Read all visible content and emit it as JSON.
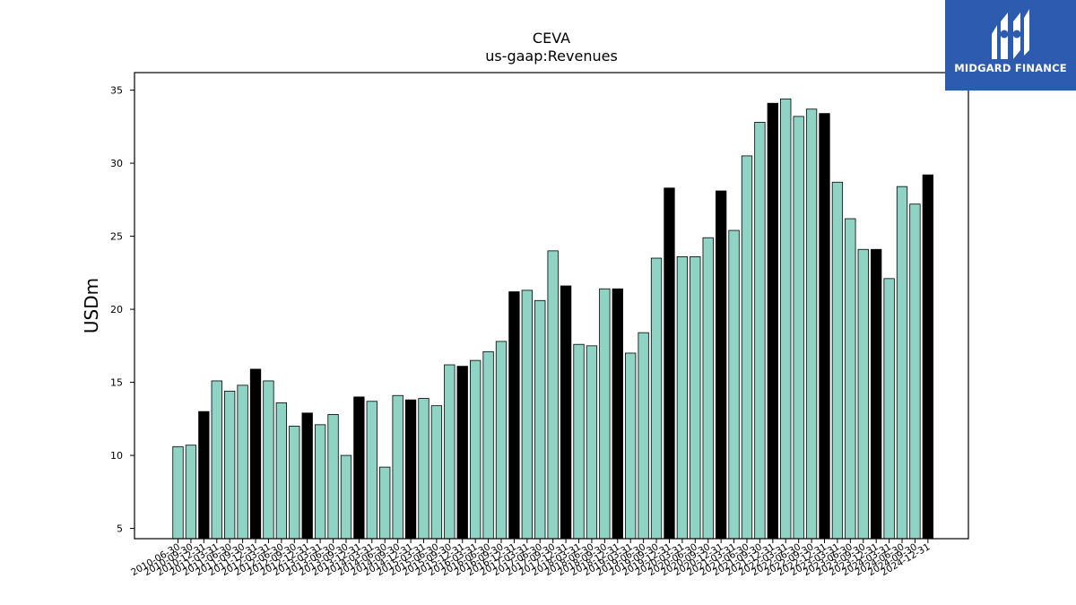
{
  "chart_data": {
    "type": "bar",
    "title": "CEVA",
    "subtitle": "us-gaap:Revenues",
    "xlabel": "",
    "ylabel": "USDm",
    "ylim": [
      4.3,
      36.2
    ],
    "yticks": [
      5,
      10,
      15,
      20,
      25,
      30,
      35
    ],
    "grid": false,
    "bar_color": "#8fd3c4",
    "highlight_color": "#000000",
    "categories": [
      "2010-06-30",
      "2010-09-30",
      "2010-12-31",
      "2011-03-31",
      "2011-06-30",
      "2011-09-30",
      "2011-12-31",
      "2012-03-31",
      "2012-06-30",
      "2012-09-30",
      "2012-12-31",
      "2013-03-31",
      "2013-06-30",
      "2013-09-30",
      "2013-12-31",
      "2014-03-31",
      "2014-06-30",
      "2014-09-30",
      "2014-12-31",
      "2015-03-31",
      "2015-06-30",
      "2015-09-30",
      "2015-12-31",
      "2016-03-31",
      "2016-06-30",
      "2016-09-30",
      "2016-12-31",
      "2017-03-31",
      "2017-06-30",
      "2017-09-30",
      "2017-12-31",
      "2018-03-31",
      "2018-06-30",
      "2018-09-30",
      "2018-12-31",
      "2019-03-31",
      "2019-06-30",
      "2019-09-30",
      "2019-12-31",
      "2020-03-31",
      "2020-06-30",
      "2020-09-30",
      "2020-12-31",
      "2021-03-31",
      "2021-06-30",
      "2021-09-30",
      "2021-12-31",
      "2022-03-31",
      "2022-06-30",
      "2022-09-30",
      "2022-12-31",
      "2023-03-31",
      "2023-06-30",
      "2023-09-30",
      "2023-12-31",
      "2024-03-31",
      "2024-06-30",
      "2024-09-30",
      "2024-12-31"
    ],
    "values": [
      10.6,
      10.7,
      13.0,
      15.1,
      14.4,
      14.8,
      15.9,
      15.1,
      13.6,
      12.0,
      12.9,
      12.1,
      12.8,
      10.0,
      14.0,
      13.7,
      9.2,
      14.1,
      13.8,
      13.9,
      13.4,
      16.2,
      16.1,
      16.5,
      17.1,
      17.8,
      21.2,
      21.3,
      20.6,
      24.0,
      21.6,
      17.6,
      17.5,
      21.4,
      21.4,
      17.0,
      18.4,
      23.5,
      28.3,
      23.6,
      23.6,
      24.9,
      28.1,
      25.4,
      30.5,
      32.8,
      34.1,
      34.4,
      33.2,
      33.7,
      33.4,
      28.7,
      26.2,
      24.1,
      24.1,
      22.1,
      28.4,
      27.2,
      29.2
    ],
    "highlighted": [
      false,
      false,
      true,
      false,
      false,
      false,
      true,
      false,
      false,
      false,
      true,
      false,
      false,
      false,
      true,
      false,
      false,
      false,
      true,
      false,
      false,
      false,
      true,
      false,
      false,
      false,
      true,
      false,
      false,
      false,
      true,
      false,
      false,
      false,
      true,
      false,
      false,
      false,
      true,
      false,
      false,
      false,
      true,
      false,
      false,
      false,
      true,
      false,
      false,
      false,
      true,
      false,
      false,
      false,
      true,
      false,
      false,
      false,
      true
    ]
  },
  "logo": {
    "text": "MIDGARD FINANCE"
  }
}
